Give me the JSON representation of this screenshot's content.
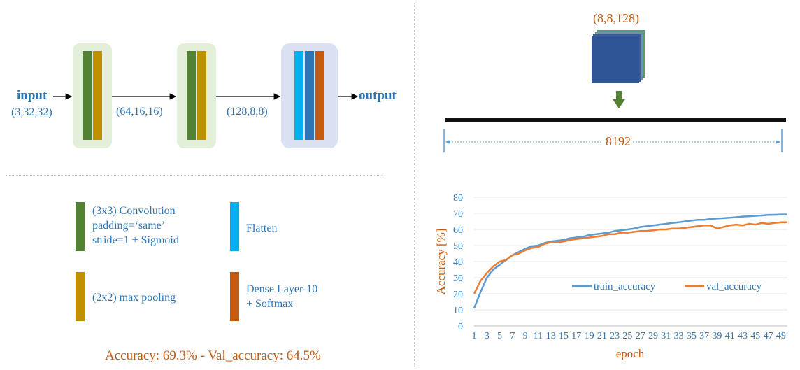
{
  "architecture": {
    "input_label": "input",
    "input_shape": "(3,32,32)",
    "shape_after_block1": "(64,16,16)",
    "shape_after_block2": "(128,8,8)",
    "output_label": "output"
  },
  "legend": {
    "conv_line1": "(3x3) Convolution",
    "conv_line2": "padding=‘same’",
    "conv_line3": "stride=1 + Sigmoid",
    "maxpool": "(2x2) max pooling",
    "flatten": "Flatten",
    "dense_line1": "Dense Layer-10",
    "dense_line2": "+ Softmax"
  },
  "accuracy_summary": "Accuracy: 69.3% - Val_accuracy: 64.5%",
  "flatten_view": {
    "tensor_shape": "(8,8,128)",
    "flattened_length": "8192"
  },
  "colors": {
    "conv": "#548235",
    "pool": "#bf9000",
    "flatten": "#00b0f0",
    "dense": "#c55a11",
    "dense_mid": "#2e75b6",
    "train": "#5b9bd5",
    "val": "#ed7d31"
  },
  "chart_data": {
    "type": "line",
    "xlabel": "epoch",
    "ylabel": "Accuracy [%]",
    "ylim": [
      0,
      80
    ],
    "yticks": [
      0,
      10,
      20,
      30,
      40,
      50,
      60,
      70,
      80
    ],
    "xticks": [
      1,
      3,
      5,
      7,
      9,
      11,
      13,
      15,
      17,
      19,
      21,
      23,
      25,
      27,
      29,
      31,
      33,
      35,
      37,
      39,
      41,
      43,
      45,
      47,
      49
    ],
    "x": [
      1,
      2,
      3,
      4,
      5,
      6,
      7,
      8,
      9,
      10,
      11,
      12,
      13,
      14,
      15,
      16,
      17,
      18,
      19,
      20,
      21,
      22,
      23,
      24,
      25,
      26,
      27,
      28,
      29,
      30,
      31,
      32,
      33,
      34,
      35,
      36,
      37,
      38,
      39,
      40,
      41,
      42,
      43,
      44,
      45,
      46,
      47,
      48,
      49,
      50
    ],
    "legend_position": "center-right",
    "series": [
      {
        "name": "train_accuracy",
        "color": "#5b9bd5",
        "values": [
          11,
          21,
          30,
          35,
          38,
          41,
          44,
          46,
          48,
          49.5,
          50,
          51.5,
          52.5,
          53,
          53.5,
          54.5,
          55,
          55.5,
          56.5,
          57,
          57.5,
          58,
          59,
          59.5,
          60,
          60.5,
          61.5,
          62,
          62.5,
          63,
          63.5,
          64,
          64.5,
          65,
          65.5,
          66,
          66,
          66.5,
          66.8,
          67,
          67.3,
          67.6,
          68,
          68.2,
          68.5,
          68.7,
          69,
          69.1,
          69.2,
          69.3
        ]
      },
      {
        "name": "val_accuracy",
        "color": "#ed7d31",
        "values": [
          20,
          28,
          33,
          37,
          40,
          41,
          44,
          45,
          47,
          48.5,
          49,
          51,
          52,
          52,
          52.5,
          53.5,
          54,
          54.5,
          55,
          55.5,
          56,
          57,
          57,
          58,
          58,
          58.5,
          59,
          59,
          59.5,
          60,
          60,
          60.5,
          60.5,
          61,
          61.5,
          62,
          62.5,
          62.5,
          60.5,
          61.5,
          62.5,
          63,
          62.5,
          63.5,
          63,
          64,
          63.5,
          64,
          64.5,
          64.5
        ]
      }
    ]
  }
}
